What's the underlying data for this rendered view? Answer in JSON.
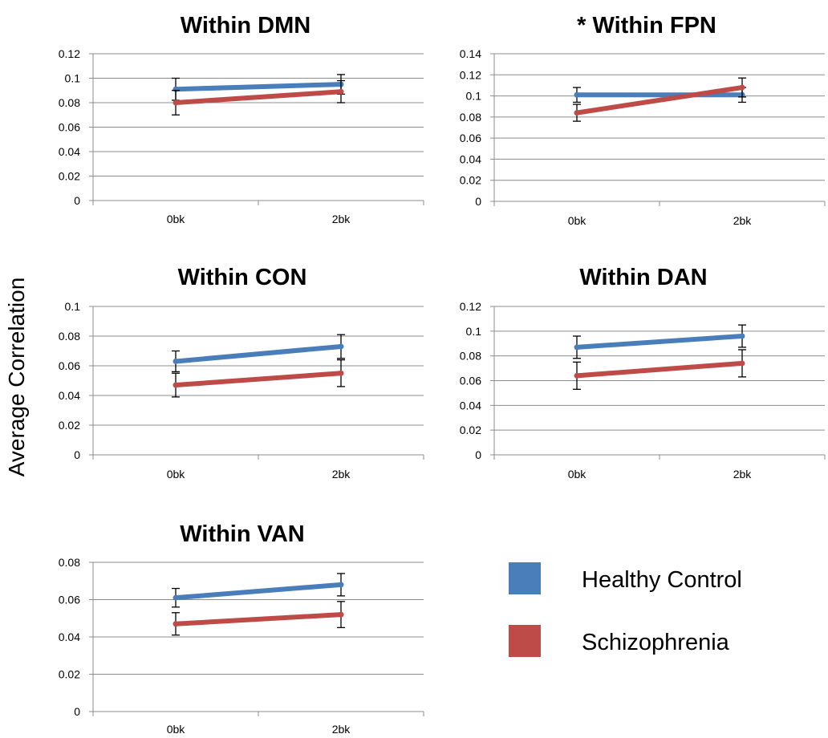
{
  "y_axis_label": "Average Correlation",
  "legend": [
    {
      "label": "Healthy Control",
      "color": "#4a7ebb"
    },
    {
      "label": "Schizophrenia",
      "color": "#be4b48"
    }
  ],
  "chart_data": [
    {
      "type": "line",
      "title": "Within DMN",
      "categories": [
        "0bk",
        "2bk"
      ],
      "ylim": [
        0,
        0.12
      ],
      "yticks": [
        0,
        0.02,
        0.04,
        0.06,
        0.08,
        0.1,
        0.12
      ],
      "ytick_labels": [
        "0",
        "0.02",
        "0.04",
        "0.06",
        "0.08",
        "0.1",
        "0.12"
      ],
      "series": [
        {
          "name": "Healthy Control",
          "values": [
            0.091,
            0.095
          ],
          "err": [
            0.009,
            0.008
          ]
        },
        {
          "name": "Schizophrenia",
          "values": [
            0.08,
            0.089
          ],
          "err": [
            0.01,
            0.009
          ]
        }
      ]
    },
    {
      "type": "line",
      "title": "* Within FPN",
      "categories": [
        "0bk",
        "2bk"
      ],
      "ylim": [
        0,
        0.14
      ],
      "yticks": [
        0,
        0.02,
        0.04,
        0.06,
        0.08,
        0.1,
        0.12,
        0.14
      ],
      "ytick_labels": [
        "0",
        "0.02",
        "0.04",
        "0.06",
        "0.08",
        "0.1",
        "0.12",
        "0.14"
      ],
      "series": [
        {
          "name": "Healthy Control",
          "values": [
            0.101,
            0.101
          ],
          "err": [
            0.007,
            0.007
          ]
        },
        {
          "name": "Schizophrenia",
          "values": [
            0.084,
            0.108
          ],
          "err": [
            0.008,
            0.009
          ]
        }
      ]
    },
    {
      "type": "line",
      "title": "Within CON",
      "categories": [
        "0bk",
        "2bk"
      ],
      "ylim": [
        0,
        0.1
      ],
      "yticks": [
        0,
        0.02,
        0.04,
        0.06,
        0.08,
        0.1
      ],
      "ytick_labels": [
        "0",
        "0.02",
        "0.04",
        "0.06",
        "0.08",
        "0.1"
      ],
      "series": [
        {
          "name": "Healthy Control",
          "values": [
            0.063,
            0.073
          ],
          "err": [
            0.007,
            0.008
          ]
        },
        {
          "name": "Schizophrenia",
          "values": [
            0.047,
            0.055
          ],
          "err": [
            0.008,
            0.009
          ]
        }
      ]
    },
    {
      "type": "line",
      "title": "Within DAN",
      "categories": [
        "0bk",
        "2bk"
      ],
      "ylim": [
        0,
        0.12
      ],
      "yticks": [
        0,
        0.02,
        0.04,
        0.06,
        0.08,
        0.1,
        0.12
      ],
      "ytick_labels": [
        "0",
        "0.02",
        "0.04",
        "0.06",
        "0.08",
        "0.1",
        "0.12"
      ],
      "series": [
        {
          "name": "Healthy Control",
          "values": [
            0.087,
            0.096
          ],
          "err": [
            0.009,
            0.009
          ]
        },
        {
          "name": "Schizophrenia",
          "values": [
            0.064,
            0.074
          ],
          "err": [
            0.011,
            0.011
          ]
        }
      ]
    },
    {
      "type": "line",
      "title": "Within VAN",
      "categories": [
        "0bk",
        "2bk"
      ],
      "ylim": [
        0,
        0.08
      ],
      "yticks": [
        0,
        0.02,
        0.04,
        0.06,
        0.08
      ],
      "ytick_labels": [
        "0",
        "0.02",
        "0.04",
        "0.06",
        "0.08"
      ],
      "series": [
        {
          "name": "Healthy Control",
          "values": [
            0.061,
            0.068
          ],
          "err": [
            0.005,
            0.006
          ]
        },
        {
          "name": "Schizophrenia",
          "values": [
            0.047,
            0.052
          ],
          "err": [
            0.006,
            0.007
          ]
        }
      ]
    }
  ]
}
